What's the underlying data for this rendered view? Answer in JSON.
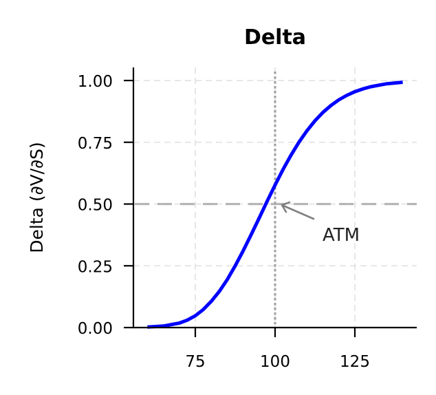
{
  "chart_data": {
    "type": "line",
    "title": "Delta",
    "xlabel": "",
    "ylabel": "Delta (∂V/∂S)",
    "xlim": [
      56.5,
      144.5
    ],
    "ylim": [
      0.0,
      1.05
    ],
    "x_ticks": [
      75,
      100,
      125
    ],
    "x_tick_labels": [
      "75",
      "100",
      "125"
    ],
    "y_ticks": [
      0.0,
      0.25,
      0.5,
      0.75,
      1.0
    ],
    "y_tick_labels": [
      "0.00",
      "0.25",
      "0.50",
      "0.75",
      "1.00"
    ],
    "grid": true,
    "legend": null,
    "series": [
      {
        "name": "Delta",
        "color": "#0000ff",
        "x": [
          60,
          65,
          70,
          72.5,
          75,
          77.5,
          80,
          82.5,
          85,
          87.5,
          90,
          92.5,
          95,
          97.5,
          100,
          102.5,
          105,
          107.5,
          110,
          112.5,
          115,
          117.5,
          120,
          122.5,
          125,
          127.5,
          130,
          135,
          140
        ],
        "values": [
          0.002,
          0.006,
          0.018,
          0.03,
          0.048,
          0.073,
          0.106,
          0.146,
          0.194,
          0.25,
          0.311,
          0.376,
          0.443,
          0.511,
          0.577,
          0.64,
          0.698,
          0.751,
          0.797,
          0.837,
          0.871,
          0.899,
          0.922,
          0.94,
          0.955,
          0.966,
          0.975,
          0.987,
          0.993
        ]
      }
    ],
    "reference_lines": [
      {
        "orientation": "vertical",
        "x": 100,
        "style": "dotted",
        "color": "#999999"
      },
      {
        "orientation": "horizontal",
        "y": 0.5,
        "style": "dashed",
        "color": "#aaaaaa"
      }
    ],
    "annotations": [
      {
        "text": "ATM",
        "xy": [
          101.5,
          0.5
        ],
        "xytext": [
          115,
          0.38
        ],
        "arrow": true,
        "arrow_color": "#808080"
      }
    ]
  }
}
